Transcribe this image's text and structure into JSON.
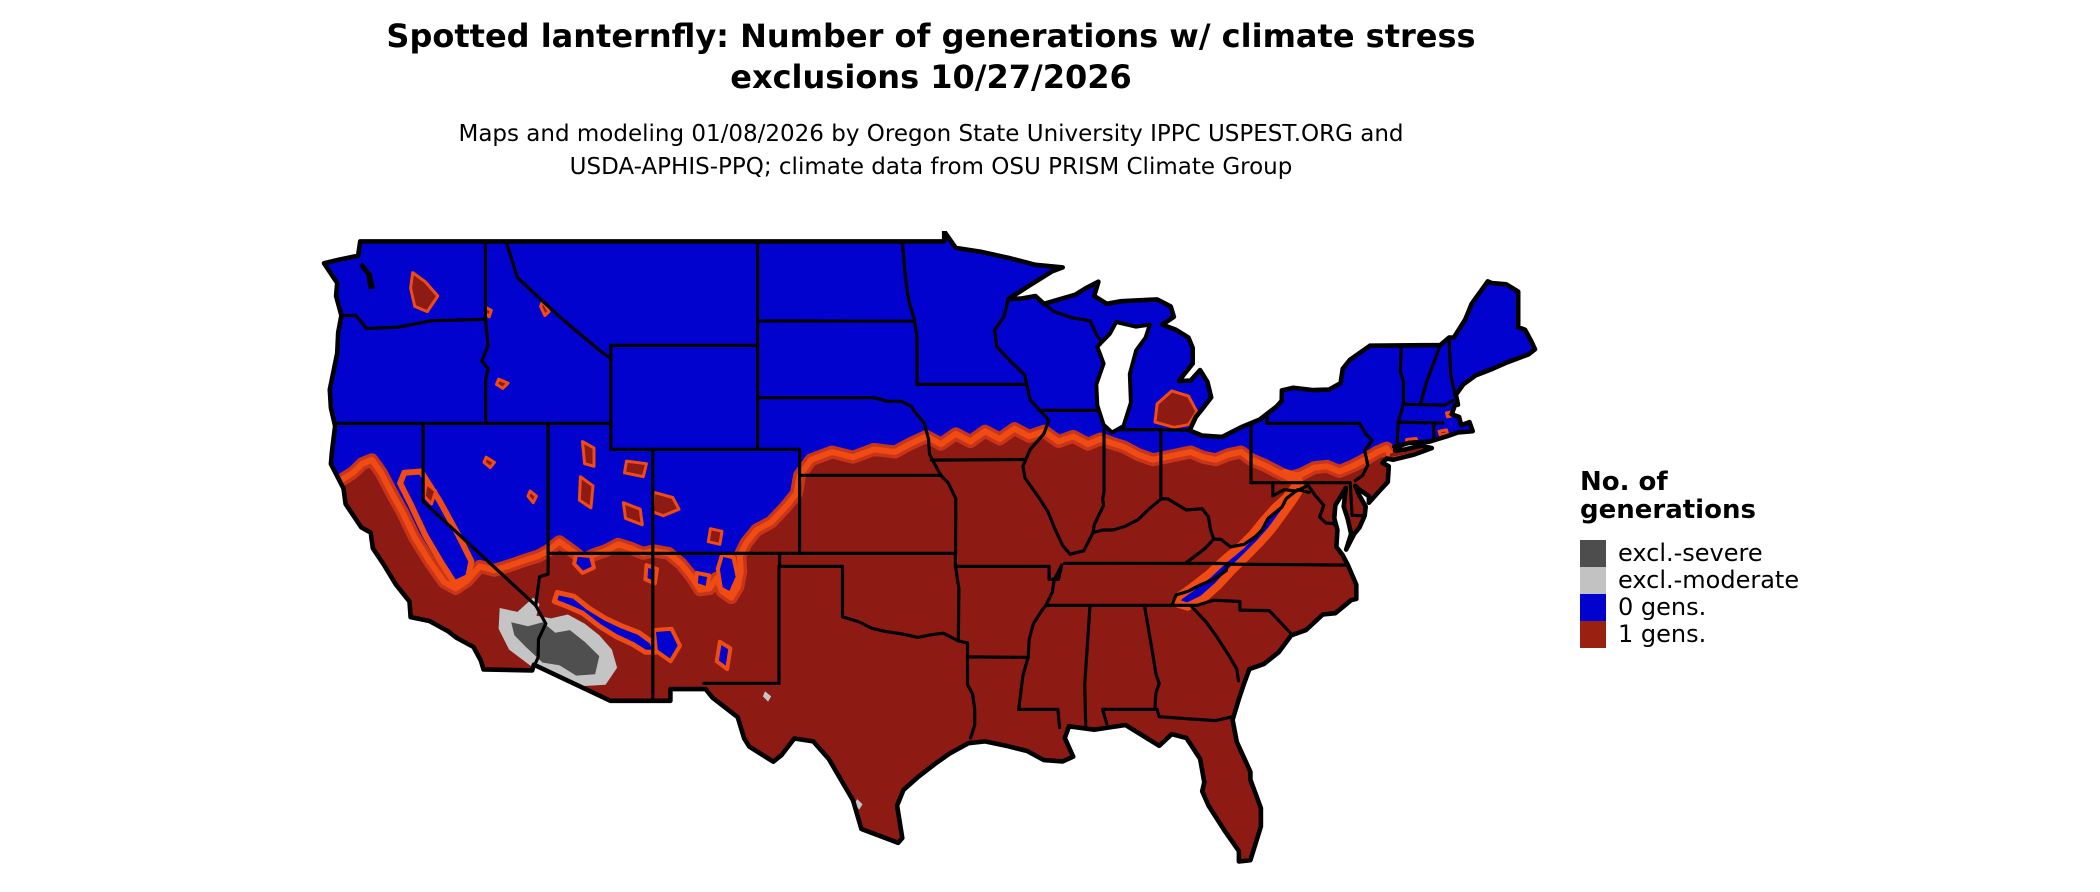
{
  "title": {
    "line1": "Spotted lanternfly: Number of generations w/ climate stress",
    "line2": "exclusions 10/27/2026"
  },
  "subtitle": {
    "line1": "Maps and modeling 01/08/2026 by Oregon State University IPPC USPEST.ORG and",
    "line2": "USDA-APHIS-PPQ; climate data from OSU PRISM Climate Group"
  },
  "legend": {
    "title_line1": "No. of",
    "title_line2": "generations",
    "items": [
      {
        "label": "excl.-severe",
        "color": "#4D4D4D"
      },
      {
        "label": "excl.-moderate",
        "color": "#C2C2C2"
      },
      {
        "label": "0 gens.",
        "color": "#0202CE"
      },
      {
        "label": "1 gens.",
        "color": "#9A2012"
      }
    ]
  },
  "map": {
    "palette": {
      "zero_generations": "#0202CE",
      "one_generation": "#8E1A14",
      "transition": "#C8341A",
      "transition_bright": "#EF4B12",
      "exclusion_severe": "#4F4F4F",
      "exclusion_moderate": "#C4C4C4",
      "state_border": "#000000",
      "water": "#FFFFFF"
    }
  }
}
